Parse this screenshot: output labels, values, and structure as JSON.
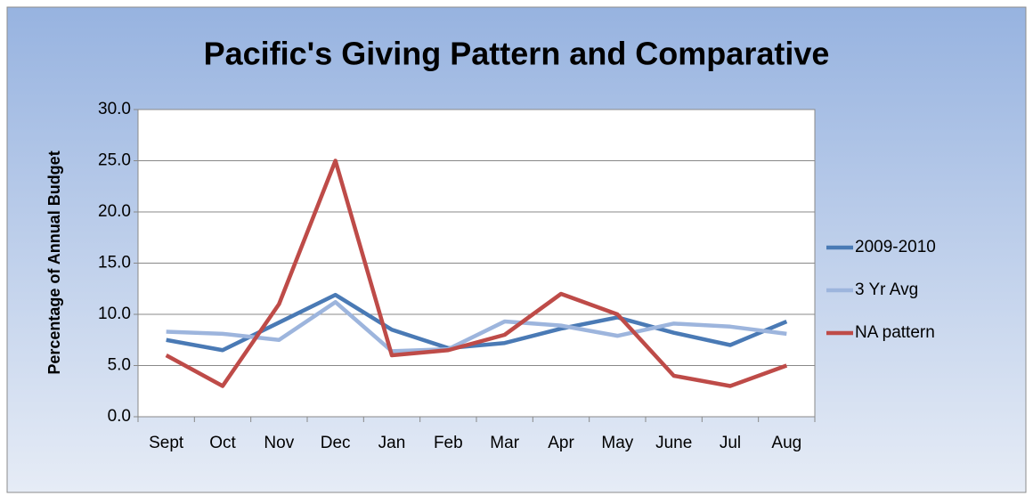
{
  "chart_data": {
    "type": "line",
    "title": "Pacific's Giving Pattern and Comparative",
    "y_label": "Percentage of Annual Budget",
    "categories": [
      "Sept",
      "Oct",
      "Nov",
      "Dec",
      "Jan",
      "Feb",
      "Mar",
      "Apr",
      "May",
      "June",
      "Jul",
      "Aug"
    ],
    "series": [
      {
        "name": "2009-2010",
        "color": "#4a7ab5",
        "values": [
          7.5,
          6.5,
          9.2,
          11.9,
          8.5,
          6.7,
          7.2,
          8.6,
          9.7,
          8.2,
          7.0,
          9.3
        ]
      },
      {
        "name": "3 Yr Avg",
        "color": "#9db5dd",
        "values": [
          8.3,
          8.1,
          7.5,
          11.2,
          6.4,
          6.6,
          9.3,
          8.9,
          7.9,
          9.1,
          8.8,
          8.1
        ]
      },
      {
        "name": "NA pattern",
        "color": "#be4b48",
        "values": [
          6,
          3,
          11,
          25,
          6,
          6.5,
          8,
          12,
          10,
          4,
          3,
          5
        ]
      }
    ],
    "ylim": [
      0,
      30
    ],
    "yticks": [
      {
        "value": 0,
        "label": "0.0"
      },
      {
        "value": 5,
        "label": "5.0"
      },
      {
        "value": 10,
        "label": "10.0"
      },
      {
        "value": 15,
        "label": "15.0"
      },
      {
        "value": 20,
        "label": "20.0"
      },
      {
        "value": 25,
        "label": "25.0"
      },
      {
        "value": 30,
        "label": "30.0"
      }
    ],
    "grid": true,
    "legend": "right"
  }
}
